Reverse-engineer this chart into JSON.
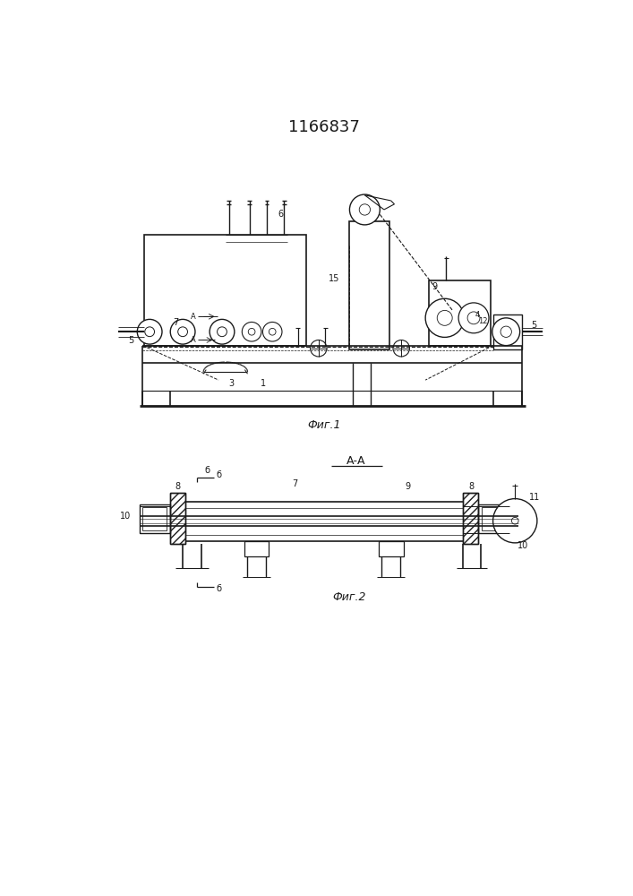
{
  "title": "1166837",
  "title_fontsize": 13,
  "bg_color": "#ffffff",
  "line_color": "#1a1a1a",
  "fig1_caption": "Фиг.1",
  "fig2_caption": "Фиг.2",
  "fig2_title": "А-А"
}
